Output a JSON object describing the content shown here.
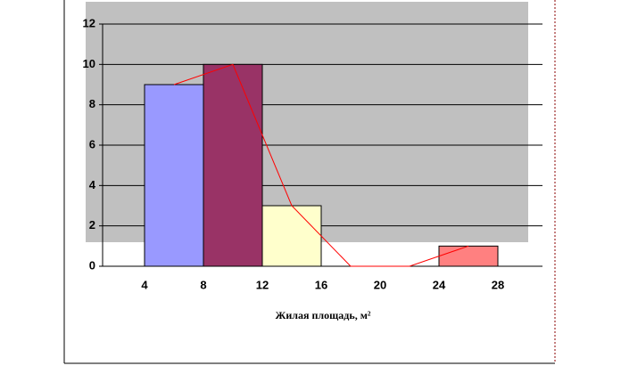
{
  "chart_data": {
    "type": "histogram",
    "bins": [
      4,
      8,
      12,
      16,
      20,
      24,
      28
    ],
    "counts": [
      9,
      10,
      3,
      0,
      0,
      1
    ],
    "colors": [
      "#9999ff",
      "#993366",
      "#ffffcc",
      "#9999ff",
      "#9999ff",
      "#ff8080"
    ],
    "line_color": "#ff0000",
    "x_label": "Жилая площадь, м²",
    "xlim": [
      4,
      28
    ],
    "xticks": [
      4,
      8,
      12,
      16,
      20,
      24,
      28
    ],
    "ylim": [
      0,
      12
    ],
    "yticks": [
      0,
      2,
      4,
      6,
      8,
      10,
      12
    ],
    "grid": true
  }
}
